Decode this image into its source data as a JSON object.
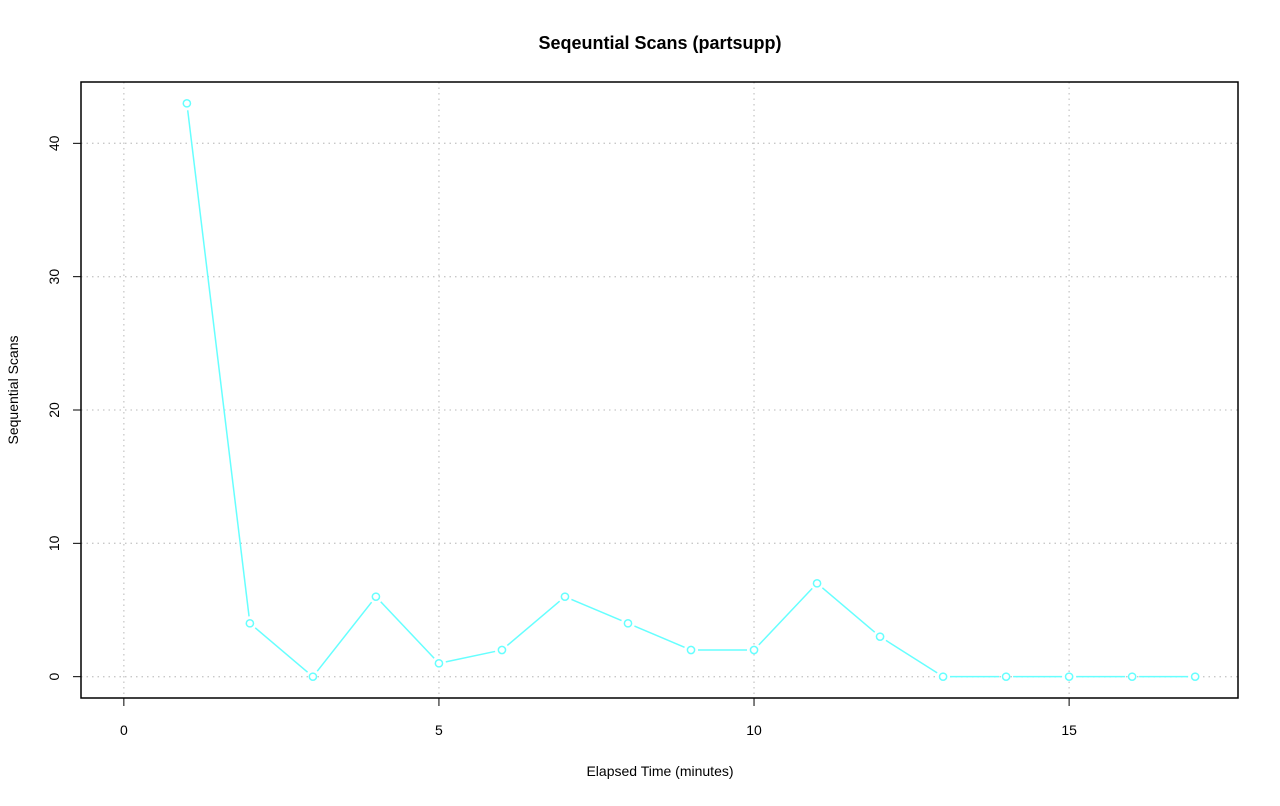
{
  "chart_data": {
    "type": "line",
    "title": "Seqeuntial Scans (partsupp)",
    "xlabel": "Elapsed Time (minutes)",
    "ylabel": "Sequential Scans",
    "xlim": [
      -0.68,
      17.68
    ],
    "ylim": [
      -1.6,
      44.6
    ],
    "x_ticks": [
      0,
      5,
      10,
      15
    ],
    "y_ticks": [
      0,
      10,
      20,
      30,
      40
    ],
    "grid": true,
    "legend": "none",
    "series": [
      {
        "color": "#66FFFF",
        "x": [
          1,
          2,
          3,
          4,
          5,
          6,
          7,
          8,
          9,
          10,
          11,
          12,
          13,
          14,
          15,
          16,
          17
        ],
        "values": [
          43,
          4,
          0,
          6,
          1,
          2,
          6,
          4,
          2,
          2,
          7,
          3,
          0,
          0,
          0,
          0,
          0
        ]
      }
    ]
  }
}
